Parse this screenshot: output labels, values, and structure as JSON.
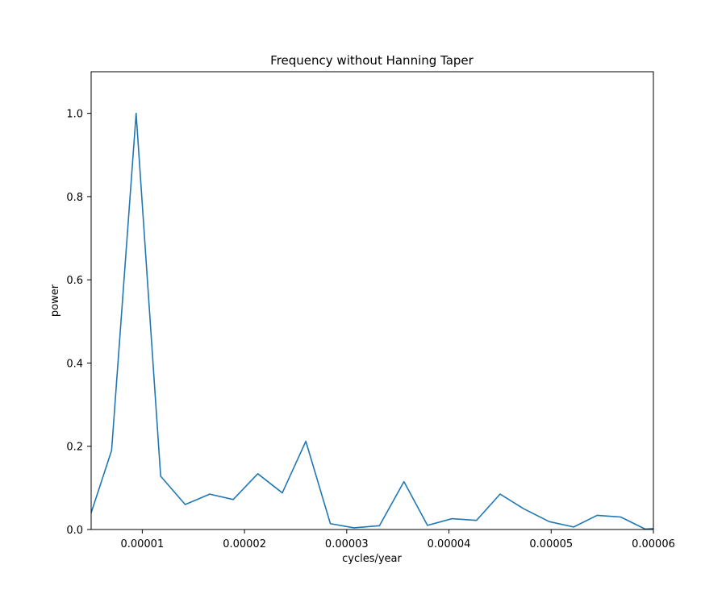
{
  "chart_data": {
    "type": "line",
    "title": "Frequency without Hanning Taper",
    "xlabel": "cycles/year",
    "ylabel": "power",
    "xlim": [
      5e-06,
      6e-05
    ],
    "ylim": [
      0.0,
      1.1
    ],
    "xticks": [
      1e-05,
      2e-05,
      3e-05,
      4e-05,
      5e-05,
      6e-05
    ],
    "xtick_labels": [
      "0.00001",
      "0.00002",
      "0.00003",
      "0.00004",
      "0.00005",
      "0.00006"
    ],
    "yticks": [
      0.0,
      0.2,
      0.4,
      0.6,
      0.8,
      1.0
    ],
    "ytick_labels": [
      "0.0",
      "0.2",
      "0.4",
      "0.6",
      "0.8",
      "1.0"
    ],
    "grid": false,
    "series": [
      {
        "color": "#1f77b4",
        "x": [
          5e-06,
          7e-06,
          9.4e-06,
          1.18e-05,
          1.42e-05,
          1.66e-05,
          1.89e-05,
          2.13e-05,
          2.37e-05,
          2.6e-05,
          2.84e-05,
          3.07e-05,
          3.32e-05,
          3.56e-05,
          3.79e-05,
          4.03e-05,
          4.27e-05,
          4.5e-05,
          4.73e-05,
          4.98e-05,
          5.22e-05,
          5.45e-05,
          5.68e-05,
          5.92e-05,
          6e-05
        ],
        "y": [
          0.04,
          0.19,
          1.0,
          0.128,
          0.06,
          0.085,
          0.072,
          0.134,
          0.088,
          0.212,
          0.014,
          0.004,
          0.009,
          0.115,
          0.01,
          0.026,
          0.022,
          0.085,
          0.05,
          0.019,
          0.006,
          0.034,
          0.03,
          0.001,
          0.002
        ]
      }
    ]
  }
}
